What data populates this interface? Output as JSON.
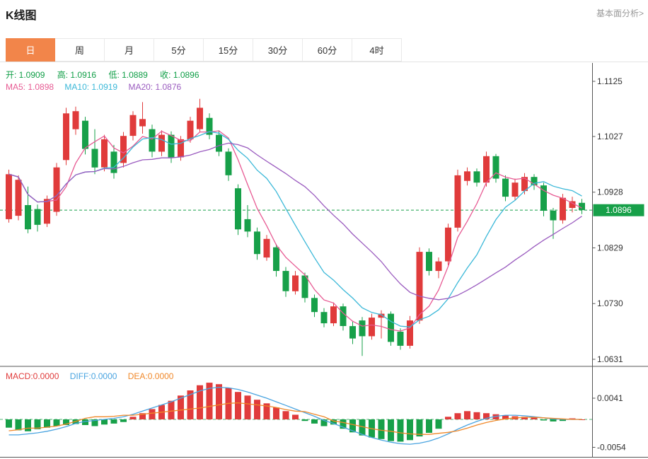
{
  "header": {
    "title": "K线图",
    "link": "基本面分析>"
  },
  "tabs": {
    "items": [
      {
        "label": "日",
        "active": true
      },
      {
        "label": "周",
        "active": false
      },
      {
        "label": "月",
        "active": false
      },
      {
        "label": "5分",
        "active": false
      },
      {
        "label": "15分",
        "active": false
      },
      {
        "label": "30分",
        "active": false
      },
      {
        "label": "60分",
        "active": false
      },
      {
        "label": "4时",
        "active": false
      }
    ]
  },
  "legend": {
    "open": "开: 1.0909",
    "high": "高: 1.0916",
    "low": "低: 1.0889",
    "close": "收: 1.0896",
    "ma5": "MA5: 1.0898",
    "ma10": "MA10: 1.0919",
    "ma20": "MA20: 1.0876"
  },
  "macd_legend": {
    "macd": "MACD:0.0000",
    "diff": "DIFF:0.0000",
    "dea": "DEA:0.0000"
  },
  "colors": {
    "up": "#e03b3b",
    "down": "#17a049",
    "legend_ohlc": "#0f9e46",
    "ma5": "#e75a93",
    "ma10": "#3bb8d8",
    "ma20": "#9a5bbf",
    "diff": "#4aa4e0",
    "dea": "#f0882a",
    "macd_label": "#e03b3b",
    "tab_active_bg": "#f2854a",
    "price_badge_bg": "#17a049",
    "price_line": "#17a049",
    "axis_line": "#555555"
  },
  "chart_data": {
    "type": "candlestick",
    "title": "K线图",
    "period": "日",
    "grid": false,
    "y_axis_position": "right",
    "ylim": [
      1.0631,
      1.1125
    ],
    "y_ticks": [
      1.1125,
      1.1027,
      1.0928,
      1.0829,
      1.073,
      1.0631
    ],
    "current_price": 1.0896,
    "last_bar": {
      "open": 1.0909,
      "high": 1.0916,
      "low": 1.0889,
      "close": 1.0896
    },
    "ma_values": {
      "ma5": 1.0898,
      "ma10": 1.0919,
      "ma20": 1.0876
    },
    "ma_periods": [
      5,
      10,
      20
    ],
    "candles": [
      [
        1.088,
        1.0968,
        1.0874,
        1.096
      ],
      [
        1.0886,
        1.0958,
        1.0878,
        1.095
      ],
      [
        1.0905,
        1.0938,
        1.0855,
        1.0862
      ],
      [
        1.0898,
        1.0906,
        1.0858,
        1.087
      ],
      [
        1.0872,
        1.0922,
        1.0866,
        1.0916
      ],
      [
        1.0893,
        1.098,
        1.0886,
        1.0972
      ],
      [
        1.0985,
        1.1078,
        1.0976,
        1.1068
      ],
      [
        1.104,
        1.108,
        1.103,
        1.1072
      ],
      [
        1.1055,
        1.1062,
        1.0995,
        1.1005
      ],
      [
        1.1005,
        1.104,
        1.096,
        1.0972
      ],
      [
        1.0972,
        1.103,
        1.0965,
        1.1022
      ],
      [
        1.1,
        1.1012,
        1.0952,
        1.0962
      ],
      [
        1.098,
        1.1035,
        1.0972,
        1.1028
      ],
      [
        1.1028,
        1.1072,
        1.102,
        1.1065
      ],
      [
        1.1045,
        1.1088,
        1.1032,
        1.1058
      ],
      [
        1.104,
        1.1048,
        1.099,
        1.1
      ],
      [
        1.1,
        1.1038,
        1.0992,
        1.103
      ],
      [
        1.103,
        1.1036,
        1.098,
        1.099
      ],
      [
        1.099,
        1.1028,
        1.0984,
        1.1022
      ],
      [
        1.1022,
        1.1062,
        1.1016,
        1.1055
      ],
      [
        1.104,
        1.1094,
        1.1034,
        1.1078
      ],
      [
        1.106,
        1.1068,
        1.1022,
        1.103
      ],
      [
        1.103,
        1.1038,
        1.0992,
        1.1
      ],
      [
        1.1,
        1.1006,
        1.0948,
        1.0958
      ],
      [
        1.0935,
        1.0942,
        1.0852,
        1.0862
      ],
      [
        1.088,
        1.0905,
        1.0848,
        1.0858
      ],
      [
        1.0858,
        1.0865,
        1.0808,
        1.0818
      ],
      [
        1.0812,
        1.0852,
        1.0806,
        1.0845
      ],
      [
        1.083,
        1.0836,
        1.0778,
        1.0788
      ],
      [
        1.0788,
        1.0795,
        1.0742,
        1.0752
      ],
      [
        1.0752,
        1.0788,
        1.0746,
        1.078
      ],
      [
        1.078,
        1.0785,
        1.0732,
        1.074
      ],
      [
        1.074,
        1.0746,
        1.0706,
        1.0715
      ],
      [
        1.0715,
        1.0722,
        1.0688,
        1.0695
      ],
      [
        1.0695,
        1.0732,
        1.069,
        1.0725
      ],
      [
        1.0725,
        1.073,
        1.0682,
        1.069
      ],
      [
        1.069,
        1.0698,
        1.0658,
        1.0668
      ],
      [
        1.07,
        1.0706,
        1.0637,
        1.0672
      ],
      [
        1.0672,
        1.0712,
        1.0666,
        1.0705
      ],
      [
        1.0705,
        1.0718,
        1.0668,
        1.0712
      ],
      [
        1.0712,
        1.0716,
        1.0655,
        1.0662
      ],
      [
        1.068,
        1.0686,
        1.0648,
        1.0655
      ],
      [
        1.0655,
        1.0708,
        1.065,
        1.07
      ],
      [
        1.07,
        1.083,
        1.0694,
        1.0822
      ],
      [
        1.0822,
        1.0828,
        1.078,
        1.0788
      ],
      [
        1.0788,
        1.0812,
        1.0775,
        1.0805
      ],
      [
        1.0805,
        1.0872,
        1.0798,
        1.0865
      ],
      [
        1.0865,
        1.0968,
        1.0858,
        1.0958
      ],
      [
        1.0948,
        1.0972,
        1.094,
        1.0965
      ],
      [
        1.0965,
        1.097,
        1.0938,
        1.0945
      ],
      [
        1.0945,
        1.1,
        1.0938,
        1.0992
      ],
      [
        1.0992,
        1.0996,
        1.0945,
        1.0952
      ],
      [
        1.0952,
        1.0958,
        1.0912,
        1.092
      ],
      [
        1.092,
        1.0952,
        1.0914,
        1.0945
      ],
      [
        1.093,
        1.0962,
        1.0924,
        1.0955
      ],
      [
        1.0955,
        1.096,
        1.0932,
        1.094
      ],
      [
        1.094,
        1.0945,
        1.0885,
        1.0895
      ],
      [
        1.0895,
        1.09,
        1.0845,
        1.0878
      ],
      [
        1.0878,
        1.0925,
        1.0872,
        1.0918
      ],
      [
        1.09,
        1.092,
        1.0892,
        1.0912
      ],
      [
        1.0909,
        1.0916,
        1.0889,
        1.0896
      ]
    ],
    "macd": {
      "y_ticks": [
        0.0041,
        -0.0054
      ],
      "macd_value": 0.0,
      "diff_value": 0.0,
      "dea_value": 0.0,
      "hist": [
        -0.0016,
        -0.0021,
        -0.0023,
        -0.0019,
        -0.0016,
        -0.0013,
        -0.0011,
        -0.0009,
        -0.0011,
        -0.0013,
        -0.001,
        -0.0008,
        -0.0005,
        0.0005,
        0.0012,
        0.002,
        0.0028,
        0.0036,
        0.0046,
        0.0056,
        0.0066,
        0.0071,
        0.0068,
        0.0061,
        0.0053,
        0.0046,
        0.0038,
        0.0031,
        0.0023,
        0.0016,
        0.0009,
        -0.0003,
        -0.0008,
        -0.0013,
        -0.001,
        -0.0018,
        -0.0025,
        -0.0031,
        -0.0035,
        -0.0038,
        -0.0042,
        -0.0043,
        -0.004,
        -0.0033,
        -0.0026,
        -0.0018,
        0.0005,
        0.0012,
        0.0016,
        0.0014,
        0.0012,
        0.001,
        0.0008,
        0.0006,
        0.0005,
        0.0004,
        -0.0002,
        -0.0004,
        -0.0003,
        0.0002,
        0.0
      ],
      "diff": [
        -0.003,
        -0.003,
        -0.0028,
        -0.0026,
        -0.0023,
        -0.0019,
        -0.0014,
        -0.0008,
        -0.0004,
        -0.0002,
        0.0,
        0.0002,
        0.0005,
        0.001,
        0.0016,
        0.0022,
        0.0028,
        0.0034,
        0.0041,
        0.0048,
        0.0055,
        0.006,
        0.0062,
        0.0061,
        0.0058,
        0.0053,
        0.0047,
        0.0041,
        0.0034,
        0.0027,
        0.002,
        0.0013,
        0.0006,
        -0.0002,
        -0.0008,
        -0.0015,
        -0.0022,
        -0.0029,
        -0.0035,
        -0.004,
        -0.0044,
        -0.0047,
        -0.0048,
        -0.0046,
        -0.0042,
        -0.0036,
        -0.0028,
        -0.0019,
        -0.0011,
        -0.0004,
        0.0002,
        0.0006,
        0.0008,
        0.0008,
        0.0007,
        0.0005,
        0.0003,
        0.0001,
        0.0,
        0.0,
        0.0
      ],
      "dea": [
        -0.0022,
        -0.002,
        -0.0017,
        -0.0017,
        -0.0015,
        -0.0013,
        -0.0009,
        -0.0004,
        0.0002,
        0.0005,
        0.0005,
        0.0006,
        0.0008,
        0.0008,
        0.001,
        0.0012,
        0.0014,
        0.0016,
        0.0018,
        0.002,
        0.0022,
        0.0025,
        0.0028,
        0.0031,
        0.0032,
        0.003,
        0.0028,
        0.0026,
        0.0023,
        0.0019,
        0.0016,
        0.0015,
        0.001,
        0.0005,
        -0.0003,
        -0.0006,
        -0.001,
        -0.0014,
        -0.0018,
        -0.0021,
        -0.0023,
        -0.0026,
        -0.0028,
        -0.0029,
        -0.0029,
        -0.0027,
        -0.0025,
        -0.0022,
        -0.0017,
        -0.0011,
        -0.0006,
        -0.0002,
        0.0001,
        0.0003,
        0.0004,
        0.0004,
        0.0003,
        0.0002,
        0.0001,
        0.0,
        0.0
      ]
    }
  }
}
